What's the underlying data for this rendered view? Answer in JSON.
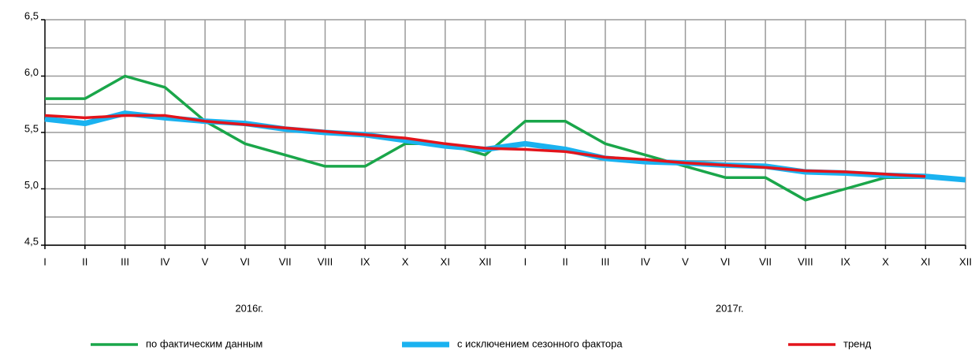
{
  "chart_data": {
    "type": "line",
    "categories": [
      "I",
      "II",
      "III",
      "IV",
      "V",
      "VI",
      "VII",
      "VIII",
      "IX",
      "X",
      "XI",
      "XII",
      "I",
      "II",
      "III",
      "IV",
      "V",
      "VI",
      "VII",
      "VIII",
      "IX",
      "X",
      "XI",
      "XII"
    ],
    "year_labels": [
      "2016г.",
      "2017г."
    ],
    "series": [
      {
        "name": "по фактическим данным",
        "color": "#1aa64a",
        "values": [
          5.8,
          5.8,
          6.0,
          5.9,
          5.6,
          5.4,
          5.3,
          5.2,
          5.2,
          5.4,
          5.4,
          5.3,
          5.6,
          5.6,
          5.4,
          5.3,
          5.2,
          5.1,
          5.1,
          4.9,
          5.0,
          5.1,
          5.1,
          null
        ]
      },
      {
        "name": "с исключением сезонного фактора",
        "color": "#1ab2f0",
        "values": [
          5.62,
          5.58,
          5.67,
          5.63,
          5.6,
          5.58,
          5.53,
          5.5,
          5.48,
          5.43,
          5.38,
          5.35,
          5.4,
          5.35,
          5.27,
          5.24,
          5.23,
          5.21,
          5.2,
          5.15,
          5.14,
          5.12,
          5.11,
          5.08
        ]
      },
      {
        "name": "тренд",
        "color": "#e3141b",
        "values": [
          5.65,
          5.63,
          5.65,
          5.65,
          5.6,
          5.57,
          5.54,
          5.51,
          5.48,
          5.45,
          5.4,
          5.36,
          5.35,
          5.33,
          5.28,
          5.26,
          5.23,
          5.21,
          5.19,
          5.16,
          5.15,
          5.13,
          5.11,
          null
        ]
      }
    ],
    "ylim": [
      4.5,
      6.5
    ],
    "yticks": [
      {
        "value": 4.5,
        "label": "4,5"
      },
      {
        "value": 5.0,
        "label": "5,0"
      },
      {
        "value": 5.5,
        "label": "5,5"
      },
      {
        "value": 6.0,
        "label": "6,0"
      },
      {
        "value": 6.5,
        "label": "6,5"
      }
    ],
    "y_minor_ticks": [
      4.75,
      5.25,
      5.75,
      6.25
    ],
    "grid": true,
    "legend": "bottom"
  }
}
